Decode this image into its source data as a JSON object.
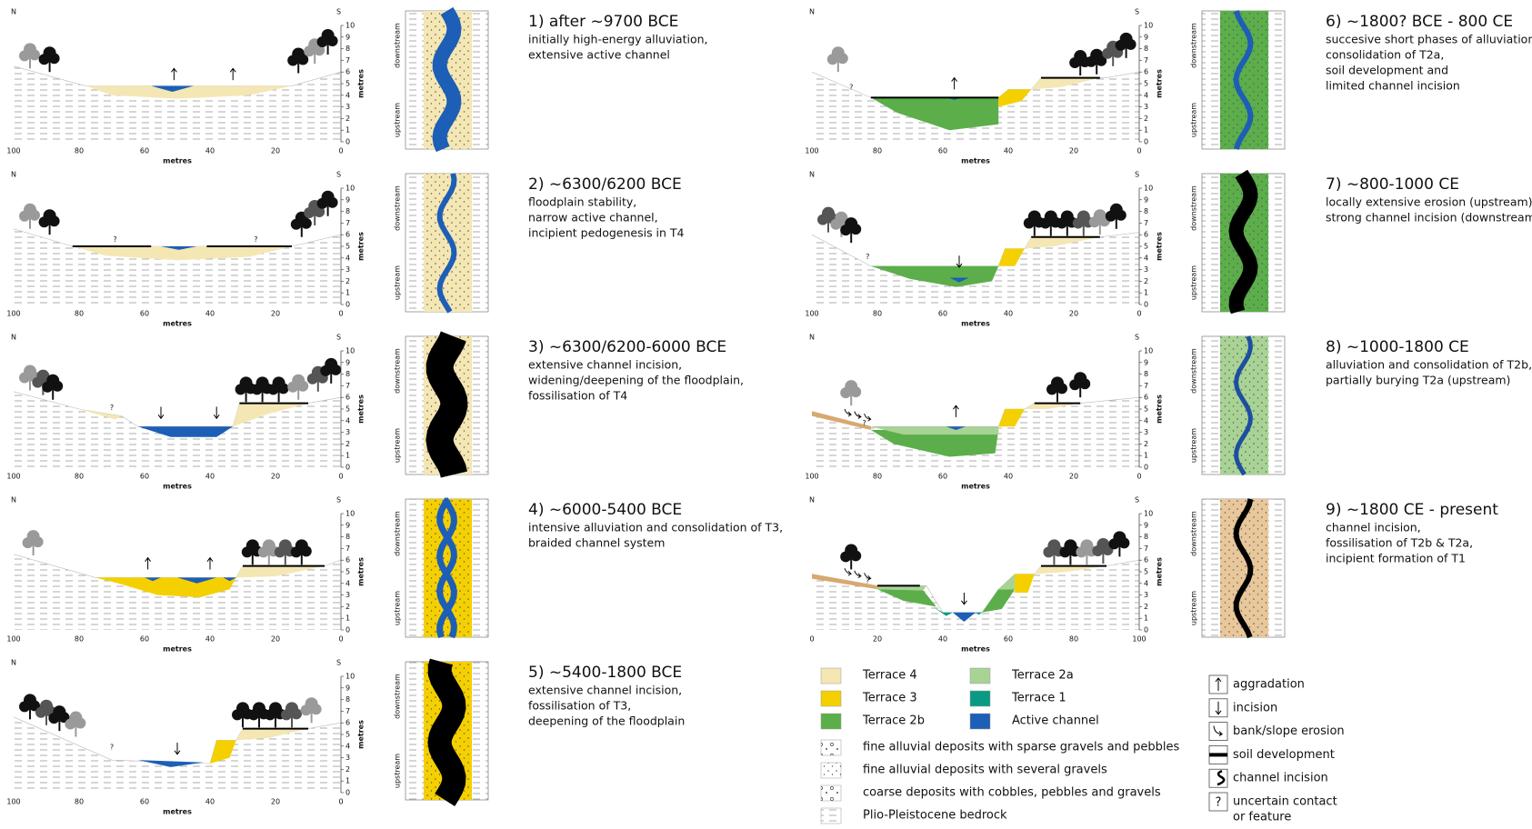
{
  "panels": [
    {
      "title": "1) after ~9700 BCE",
      "lines": [
        "initially high-energy alluviation,",
        "extensive active channel"
      ],
      "section": {
        "north": "N",
        "south": "S",
        "x_ticks": [
          100,
          80,
          60,
          40,
          20,
          0
        ],
        "x_label": "metres",
        "y_ticks": [
          0,
          1,
          2,
          3,
          4,
          5,
          6,
          7,
          8,
          9,
          10
        ],
        "y_label": "metres",
        "notes": []
      },
      "plan": {
        "downstream": "downstream",
        "upstream": "upstream"
      }
    },
    {
      "title": "2) ~6300/6200 BCE",
      "lines": [
        "floodplain stability,",
        "narrow active channel,",
        "incipient pedogenesis in T4"
      ],
      "section": {
        "north": "N",
        "south": "S",
        "x_ticks": [
          100,
          80,
          60,
          40,
          20,
          0
        ],
        "x_label": "metres",
        "y_ticks": [
          0,
          1,
          2,
          3,
          4,
          5,
          6,
          7,
          8,
          9,
          10
        ],
        "y_label": "metres",
        "notes": [
          "?",
          "?"
        ]
      },
      "plan": {
        "downstream": "downstream",
        "upstream": "upstream"
      }
    },
    {
      "title": "3) ~6300/6200-6000 BCE",
      "lines": [
        "extensive channel incision,",
        "widening/deepening of the floodplain,",
        "fossilisation of T4"
      ],
      "section": {
        "north": "N",
        "south": "S",
        "x_ticks": [
          100,
          80,
          60,
          40,
          20,
          0
        ],
        "x_label": "metres",
        "y_ticks": [
          0,
          1,
          2,
          3,
          4,
          5,
          6,
          7,
          8,
          9,
          10
        ],
        "y_label": "metres",
        "notes": [
          "?"
        ]
      },
      "plan": {
        "downstream": "downstream",
        "upstream": "upstream"
      }
    },
    {
      "title": "4) ~6000-5400 BCE",
      "lines": [
        "intensive alluviation and consolidation of T3,",
        "braided channel system"
      ],
      "section": {
        "north": "N",
        "south": "S",
        "x_ticks": [
          100,
          80,
          60,
          40,
          20,
          0
        ],
        "x_label": "metres",
        "y_ticks": [
          0,
          1,
          2,
          3,
          4,
          5,
          6,
          7,
          8,
          9,
          10
        ],
        "y_label": "metres",
        "notes": []
      },
      "plan": {
        "downstream": "downstream",
        "upstream": "upstream"
      }
    },
    {
      "title": "5) ~5400-1800 BCE",
      "lines": [
        "extensive channel incision,",
        "fossilisation of T3,",
        "deepening of the floodplain"
      ],
      "section": {
        "north": "N",
        "south": "S",
        "x_ticks": [
          100,
          80,
          60,
          40,
          20,
          0
        ],
        "x_label": "metres",
        "y_ticks": [
          0,
          1,
          2,
          3,
          4,
          5,
          6,
          7,
          8,
          9,
          10
        ],
        "y_label": "metres",
        "notes": [
          "?"
        ]
      },
      "plan": {
        "downstream": "downstream",
        "upstream": "upstream"
      }
    },
    {
      "title": "6) ~1800? BCE - 800 CE",
      "lines": [
        "succesive short phases of alluviation,",
        "consolidation of T2a,",
        "soil development and",
        "limited channel incision"
      ],
      "section": {
        "north": "N",
        "south": "S",
        "x_ticks": [
          100,
          80,
          60,
          40,
          20,
          0
        ],
        "x_label": "metres",
        "y_ticks": [
          0,
          1,
          2,
          3,
          4,
          5,
          6,
          7,
          8,
          9,
          10
        ],
        "y_label": "metres",
        "notes": [
          "?"
        ]
      },
      "plan": {
        "downstream": "downstream",
        "upstream": "upstream"
      }
    },
    {
      "title": "7) ~800-1000 CE",
      "lines": [
        "locally extensive erosion (upstream),",
        "strong channel incision (downstream)"
      ],
      "section": {
        "north": "N",
        "south": "S",
        "x_ticks": [
          100,
          80,
          60,
          40,
          20,
          0
        ],
        "x_label": "metres",
        "y_ticks": [
          0,
          1,
          2,
          3,
          4,
          5,
          6,
          7,
          8,
          9,
          10
        ],
        "y_label": "metres",
        "notes": [
          "?"
        ]
      },
      "plan": {
        "downstream": "downstream",
        "upstream": "upstream"
      }
    },
    {
      "title": "8) ~1000-1800 CE",
      "lines": [
        "alluviation and consolidation of T2b,",
        "partially burying T2a (upstream)"
      ],
      "section": {
        "north": "N",
        "south": "S",
        "x_ticks": [
          100,
          80,
          60,
          40,
          20,
          0
        ],
        "x_label": "metres",
        "y_ticks": [
          0,
          1,
          2,
          3,
          4,
          5,
          6,
          7,
          8,
          9,
          10
        ],
        "y_label": "metres",
        "notes": [
          "?"
        ]
      },
      "plan": {
        "downstream": "downstream",
        "upstream": "upstream"
      }
    },
    {
      "title": "9) ~1800 CE - present",
      "lines": [
        "channel incision,",
        "fossilisation of T2b & T2a,",
        "incipient formation of T1"
      ],
      "section": {
        "north": "N",
        "south": "S",
        "x_ticks": [
          0,
          20,
          40,
          60,
          80,
          100
        ],
        "x_label": "metres",
        "y_ticks": [
          0,
          1,
          2,
          3,
          4,
          5,
          6,
          7,
          8,
          9,
          10
        ],
        "y_label": "metres",
        "notes": [
          "?"
        ]
      },
      "plan": {
        "downstream": "downstream",
        "upstream": "upstream"
      }
    }
  ],
  "legend": {
    "units": [
      {
        "label": "Terrace 4",
        "color": "#f4e7b4"
      },
      {
        "label": "Terrace 3",
        "color": "#f5d000"
      },
      {
        "label": "Terrace 2b",
        "color": "#5cae4a"
      },
      {
        "label": "Terrace 2a",
        "color": "#a8d395"
      },
      {
        "label": "Terrace 1",
        "color": "#0a9a83"
      },
      {
        "label": "Active channel",
        "color": "#1d5eb6"
      }
    ],
    "deposits": [
      "fine alluvial deposits with sparse gravels and pebbles",
      "fine alluvial deposits with several gravels",
      "coarse deposits with cobbles, pebbles and gravels",
      "Plio-Pleistocene bedrock"
    ],
    "symbols": [
      {
        "lines": [
          "aggradation"
        ]
      },
      {
        "lines": [
          "incision"
        ]
      },
      {
        "lines": [
          "bank/slope erosion"
        ]
      },
      {
        "lines": [
          "soil development"
        ]
      },
      {
        "lines": [
          "channel incision"
        ]
      },
      {
        "icon": "?",
        "lines": [
          "uncertain contact",
          "or feature"
        ]
      }
    ]
  }
}
